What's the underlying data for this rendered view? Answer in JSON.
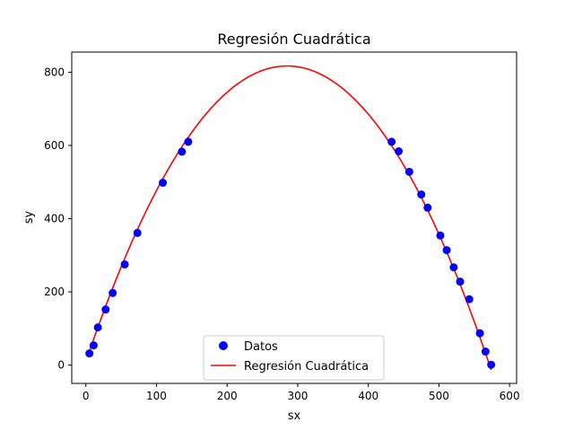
{
  "chart_data": {
    "type": "scatter",
    "title": "Regresión Cuadrática",
    "xlabel": "sx",
    "ylabel": "sy",
    "xlim": [
      -20,
      610
    ],
    "ylim": [
      -50,
      855
    ],
    "xticks": [
      0,
      100,
      200,
      300,
      400,
      500,
      600
    ],
    "yticks": [
      0,
      200,
      400,
      600,
      800
    ],
    "grid": false,
    "legend_position": "bottom-center",
    "series": [
      {
        "name": "Datos",
        "kind": "scatter",
        "color": "#0000ff",
        "x": [
          5,
          11,
          17,
          28,
          38,
          55,
          73,
          109,
          136,
          145,
          433,
          443,
          458,
          475,
          484,
          502,
          511,
          521,
          530,
          543,
          558,
          566,
          574
        ],
        "y": [
          32,
          54,
          103,
          152,
          197,
          275,
          361,
          498,
          583,
          610,
          610,
          584,
          528,
          466,
          430,
          354,
          314,
          267,
          228,
          180,
          87,
          37,
          1
        ]
      },
      {
        "name": "Regresión Cuadrática",
        "kind": "line",
        "color": "#ff0000",
        "curve": {
          "vertex_x": 285,
          "vertex_y": 817,
          "a": -0.00994,
          "x_from": 5,
          "x_to": 574
        }
      }
    ]
  }
}
